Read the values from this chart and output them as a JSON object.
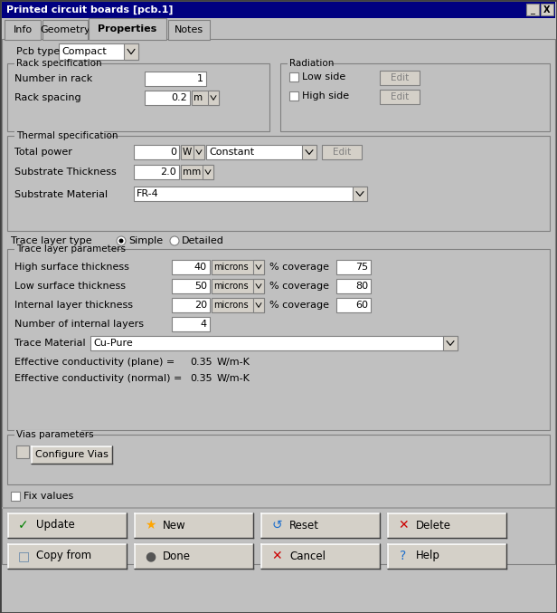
{
  "title": "Printed circuit boards [pcb.1]",
  "bg_color": "#c0c0c0",
  "titlebar_color": "#000080",
  "titlebar_text_color": "#ffffff",
  "tab_active": "Properties",
  "tabs": [
    "Info",
    "Geometry",
    "Properties",
    "Notes"
  ],
  "pcb_type_label": "Pcb type",
  "pcb_type_value": "Compact",
  "rack_spec_label": "Rack specification",
  "num_in_rack_label": "Number in rack",
  "num_in_rack_value": "1",
  "rack_spacing_label": "Rack spacing",
  "rack_spacing_value": "0.2",
  "rack_spacing_unit": "m",
  "radiation_label": "Radiation",
  "low_side_label": "Low side",
  "high_side_label": "High side",
  "thermal_spec_label": "Thermal specification",
  "total_power_label": "Total power",
  "total_power_value": "0",
  "total_power_unit": "W",
  "total_power_mode": "Constant",
  "substrate_thickness_label": "Substrate Thickness",
  "substrate_thickness_value": "2.0",
  "substrate_thickness_unit": "mm",
  "substrate_material_label": "Substrate Material",
  "substrate_material_value": "FR-4",
  "trace_layer_type_label": "Trace layer type",
  "trace_simple": "Simple",
  "trace_detailed": "Detailed",
  "trace_params_label": "Trace layer parameters",
  "high_surface_thickness_label": "High surface thickness",
  "high_surface_thickness_value": "40",
  "high_surface_unit": "microns",
  "high_surface_coverage": "75",
  "low_surface_thickness_label": "Low surface thickness",
  "low_surface_thickness_value": "50",
  "low_surface_unit": "microns",
  "low_surface_coverage": "80",
  "internal_layer_thickness_label": "Internal layer thickness",
  "internal_layer_thickness_value": "20",
  "internal_layer_unit": "microns",
  "internal_layer_coverage": "60",
  "num_internal_layers_label": "Number of internal layers",
  "num_internal_layers_value": "4",
  "trace_material_label": "Trace Material",
  "trace_material_value": "Cu-Pure",
  "eff_cond_plane_label": "Effective conductivity (plane) =",
  "eff_cond_plane_value": "0.35",
  "eff_cond_plane_unit": "W/m-K",
  "eff_cond_normal_label": "Effective conductivity (normal) =",
  "eff_cond_normal_value": "0.35",
  "eff_cond_normal_unit": "W/m-K",
  "vias_params_label": "Vias parameters",
  "configure_vias_btn": "Configure Vias",
  "fix_values_label": "Fix values",
  "btn_update": "Update",
  "btn_new": "New",
  "btn_reset": "Reset",
  "btn_delete": "Delete",
  "btn_copy_from": "Copy from",
  "btn_done": "Done",
  "btn_cancel": "Cancel",
  "btn_help": "Help"
}
